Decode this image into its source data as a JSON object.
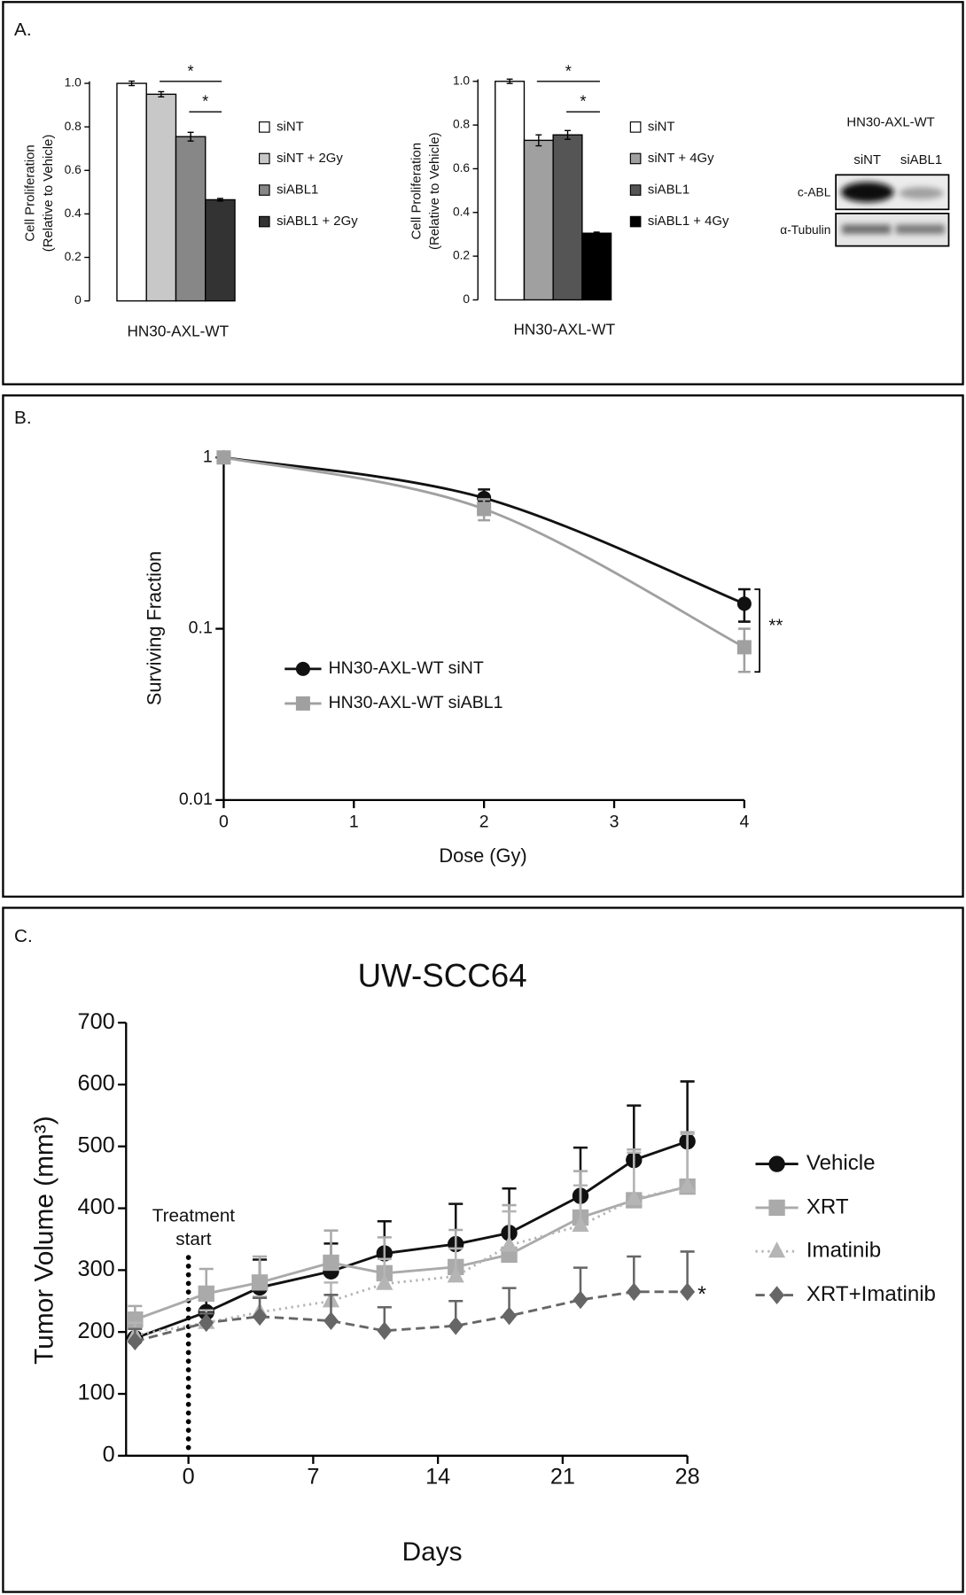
{
  "panels": {
    "a": "A.",
    "b": "B.",
    "c": "C."
  },
  "blot": {
    "title": "HN30-AXL-WT",
    "lanes": [
      "siNT",
      "siABL1"
    ],
    "rows": [
      "c-ABL",
      "α-Tubulin"
    ]
  },
  "chart_data": [
    {
      "type": "bar",
      "y_label": [
        "Cell Proliferation",
        "(Relative to Vehicle)"
      ],
      "x_label": "HN30-AXL-WT",
      "ylim": [
        0,
        1
      ],
      "yticks": [
        0,
        0.2,
        0.4,
        0.6,
        0.8,
        {
          "value": 1,
          "label": "1.0"
        }
      ],
      "series": [
        {
          "name": "siNT",
          "color": "#ffffff",
          "values": [
            1.0
          ],
          "errors": [
            0.01
          ]
        },
        {
          "name": "siNT + 2Gy",
          "color": "#c8c8c8",
          "values": [
            0.95
          ],
          "errors": [
            0.012
          ]
        },
        {
          "name": "siABL1",
          "color": "#878787",
          "values": [
            0.755
          ],
          "errors": [
            0.02
          ]
        },
        {
          "name": "siABL1 + 2Gy",
          "color": "#333333",
          "values": [
            0.465
          ],
          "errors": [
            0.006
          ]
        }
      ],
      "annotations": [
        "*",
        "*"
      ]
    },
    {
      "type": "bar",
      "y_label": [
        "Cell Proliferation",
        "(Relative to Vehicle)"
      ],
      "x_label": "HN30-AXL-WT",
      "ylim": [
        0,
        1
      ],
      "yticks": [
        0,
        0.2,
        0.4,
        0.6,
        0.8,
        {
          "value": 1,
          "label": "1.0"
        }
      ],
      "series": [
        {
          "name": "siNT",
          "color": "#ffffff",
          "values": [
            1.0
          ],
          "errors": [
            0.01
          ]
        },
        {
          "name": "siNT + 4Gy",
          "color": "#a0a0a0",
          "values": [
            0.73
          ],
          "errors": [
            0.025
          ]
        },
        {
          "name": "siABL1",
          "color": "#555555",
          "values": [
            0.755
          ],
          "errors": [
            0.02
          ]
        },
        {
          "name": "siABL1 + 4Gy",
          "color": "#000000",
          "values": [
            0.305
          ],
          "errors": [
            0.005
          ]
        }
      ],
      "annotations": [
        "*",
        "*"
      ]
    },
    {
      "type": "line",
      "log_y": true,
      "smooth": true,
      "error_bars": "both",
      "y_label": "Surviving Fraction",
      "x_label": "Dose (Gy)",
      "xlim": [
        0,
        4
      ],
      "xticks": [
        0,
        1,
        2,
        3,
        4
      ],
      "ylim": [
        0.01,
        1
      ],
      "yticks": [
        0.01,
        0.1,
        1
      ],
      "x": [
        0,
        2,
        4
      ],
      "series": [
        {
          "name": "HN30-AXL-WT siNT",
          "color": "#111111",
          "marker": "circle",
          "line": "solid",
          "values": [
            1,
            0.58,
            0.14
          ],
          "errors": [
            0.03,
            0.07,
            0.03
          ]
        },
        {
          "name": "HN30-AXL-WT siABL1",
          "color": "#a0a0a0",
          "marker": "square",
          "line": "solid",
          "values": [
            1,
            0.5,
            0.078
          ],
          "errors": [
            0.03,
            0.07,
            0.022
          ]
        }
      ],
      "annotations": [
        "**"
      ]
    },
    {
      "type": "line",
      "log_y": false,
      "smooth": false,
      "error_bars": "up",
      "title": "UW-SCC64",
      "y_label": "Tumor Volume (mm³)",
      "x_label": "Days",
      "xlim": [
        -3.5,
        28
      ],
      "xticks": [
        0,
        7,
        14,
        21,
        28
      ],
      "ylim": [
        0,
        700
      ],
      "yticks": [
        0,
        100,
        200,
        300,
        400,
        500,
        600,
        700
      ],
      "x": [
        -3,
        1,
        4,
        8,
        11,
        15,
        18,
        22,
        25,
        28
      ],
      "series": [
        {
          "name": "Vehicle",
          "color": "#111111",
          "marker": "circle",
          "line": "solid",
          "values": [
            190,
            232,
            272,
            298,
            327,
            342,
            360,
            420,
            478,
            508
          ],
          "errors": [
            30,
            38,
            45,
            45,
            52,
            65,
            72,
            78,
            88,
            97
          ]
        },
        {
          "name": "XRT",
          "color": "#aaaaaa",
          "marker": "square",
          "line": "solid",
          "values": [
            220,
            262,
            280,
            312,
            295,
            305,
            325,
            385,
            413,
            435
          ],
          "errors": [
            22,
            40,
            42,
            52,
            58,
            60,
            80,
            75,
            82,
            88
          ]
        },
        {
          "name": "Imatinib",
          "color": "#b5b5b5",
          "marker": "triangle",
          "line": "dotted",
          "values": [
            195,
            215,
            232,
            250,
            278,
            290,
            340,
            372,
            415,
            435
          ],
          "errors": [
            20,
            20,
            25,
            30,
            40,
            45,
            55,
            65,
            75,
            85
          ]
        },
        {
          "name": "XRT+Imatinib",
          "color": "#666666",
          "marker": "diamond",
          "line": "dashed",
          "values": [
            185,
            215,
            225,
            218,
            202,
            210,
            226,
            252,
            265,
            265
          ],
          "errors": [
            20,
            15,
            30,
            42,
            38,
            40,
            45,
            52,
            57,
            65
          ]
        }
      ],
      "annotations": [
        "*"
      ],
      "treatment_label": [
        "Treatment",
        "start"
      ],
      "treatment_x": 0
    }
  ]
}
